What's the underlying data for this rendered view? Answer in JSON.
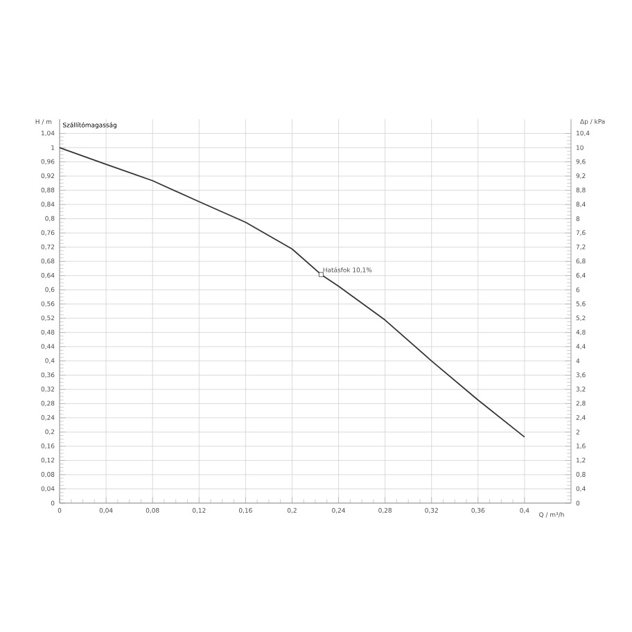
{
  "chart_data": {
    "type": "line",
    "title": "Szállítómagasság",
    "xlabel": "Q / m³/h",
    "ylabel": "H / m",
    "y2label": "Δp / kPa",
    "x": [
      0,
      0.04,
      0.08,
      0.12,
      0.16,
      0.2,
      0.225,
      0.24,
      0.28,
      0.32,
      0.36,
      0.4
    ],
    "series": [
      {
        "color": "#333333",
        "values": [
          1.0,
          0.953,
          0.907,
          0.848,
          0.79,
          0.715,
          0.643,
          0.61,
          0.515,
          0.4,
          0.29,
          0.186
        ]
      }
    ],
    "annotations": [
      {
        "text": "Hatásfok  10,1%",
        "x": 0.225,
        "y": 0.643
      }
    ],
    "xlim": [
      0,
      0.44
    ],
    "ylim": [
      0,
      1.08
    ],
    "y2lim": [
      0,
      10.8
    ],
    "xticks": [
      0,
      {
        "value": 0.04,
        "label": "0,04"
      },
      {
        "value": 0.08,
        "label": "0,08"
      },
      {
        "value": 0.12,
        "label": "0,12"
      },
      {
        "value": 0.16,
        "label": "0,16"
      },
      {
        "value": 0.2,
        "label": "0,2"
      },
      {
        "value": 0.24,
        "label": "0,24"
      },
      {
        "value": 0.28,
        "label": "0,28"
      },
      {
        "value": 0.32,
        "label": "0,32"
      },
      {
        "value": 0.36,
        "label": "0,36"
      },
      {
        "value": 0.4,
        "label": "0,4"
      }
    ],
    "yticks": [
      0,
      {
        "value": 0.04,
        "label": "0,04"
      },
      {
        "value": 0.08,
        "label": "0,08"
      },
      {
        "value": 0.12,
        "label": "0,12"
      },
      {
        "value": 0.16,
        "label": "0,16"
      },
      {
        "value": 0.2,
        "label": "0,2"
      },
      {
        "value": 0.24,
        "label": "0,24"
      },
      {
        "value": 0.28,
        "label": "0,28"
      },
      {
        "value": 0.32,
        "label": "0,32"
      },
      {
        "value": 0.36,
        "label": "0,36"
      },
      {
        "value": 0.4,
        "label": "0,4"
      },
      {
        "value": 0.44,
        "label": "0,44"
      },
      {
        "value": 0.48,
        "label": "0,48"
      },
      {
        "value": 0.52,
        "label": "0,52"
      },
      {
        "value": 0.56,
        "label": "0,56"
      },
      {
        "value": 0.6,
        "label": "0,6"
      },
      {
        "value": 0.64,
        "label": "0,64"
      },
      {
        "value": 0.68,
        "label": "0,68"
      },
      {
        "value": 0.72,
        "label": "0,72"
      },
      {
        "value": 0.76,
        "label": "0,76"
      },
      {
        "value": 0.8,
        "label": "0,8"
      },
      {
        "value": 0.84,
        "label": "0,84"
      },
      {
        "value": 0.88,
        "label": "0,88"
      },
      {
        "value": 0.92,
        "label": "0,92"
      },
      {
        "value": 0.96,
        "label": "0,96"
      },
      1,
      {
        "value": 1.04,
        "label": "1,04"
      }
    ],
    "y2ticks": [
      0,
      {
        "value": 0.4,
        "label": "0,4"
      },
      {
        "value": 0.8,
        "label": "0,8"
      },
      {
        "value": 1.2,
        "label": "1,2"
      },
      {
        "value": 1.6,
        "label": "1,6"
      },
      2,
      {
        "value": 2.4,
        "label": "2,4"
      },
      {
        "value": 2.8,
        "label": "2,8"
      },
      {
        "value": 3.2,
        "label": "3,2"
      },
      {
        "value": 3.6,
        "label": "3,6"
      },
      4,
      {
        "value": 4.4,
        "label": "4,4"
      },
      {
        "value": 4.8,
        "label": "4,8"
      },
      {
        "value": 5.2,
        "label": "5,2"
      },
      {
        "value": 5.6,
        "label": "5,6"
      },
      6,
      {
        "value": 6.4,
        "label": "6,4"
      },
      {
        "value": 6.8,
        "label": "6,8"
      },
      {
        "value": 7.2,
        "label": "7,2"
      },
      {
        "value": 7.6,
        "label": "7,6"
      },
      8,
      {
        "value": 8.4,
        "label": "8,4"
      },
      {
        "value": 8.8,
        "label": "8,8"
      },
      {
        "value": 9.2,
        "label": "9,2"
      },
      {
        "value": 9.6,
        "label": "9,6"
      },
      10,
      {
        "value": 10.4,
        "label": "10,4"
      }
    ],
    "grid": true,
    "marker": "none",
    "line_style": "solid"
  }
}
